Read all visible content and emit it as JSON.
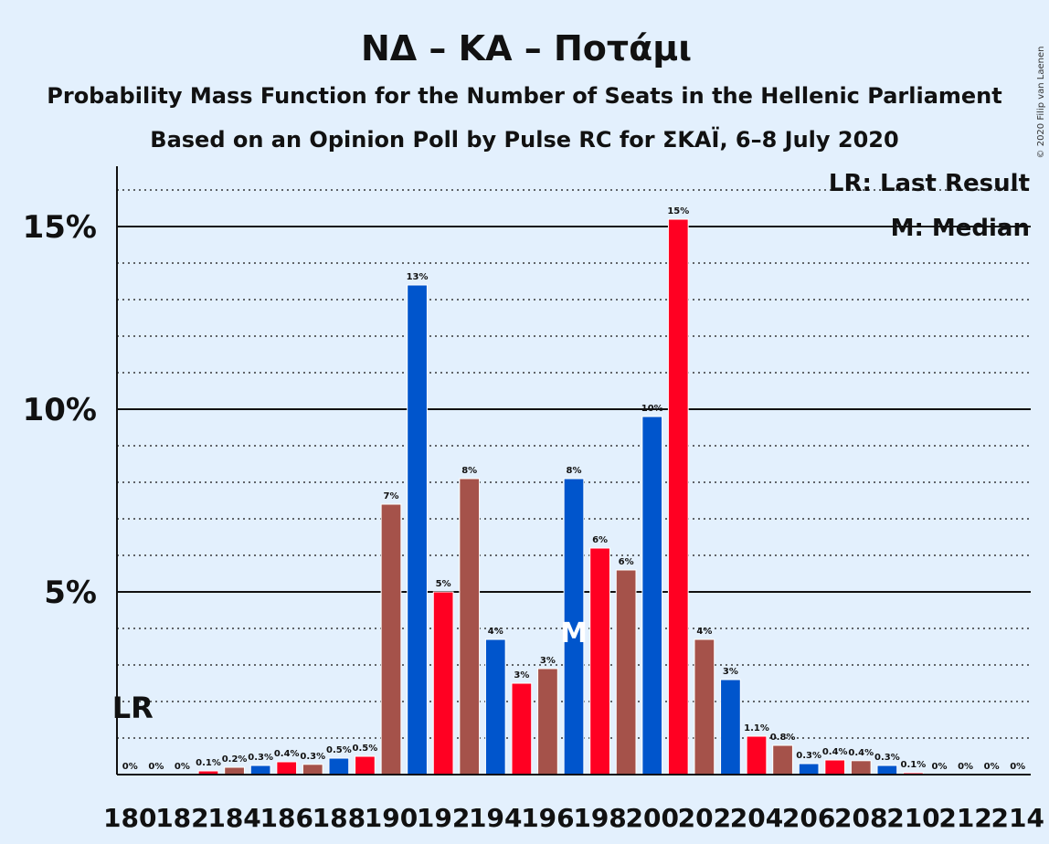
{
  "chart_data": {
    "type": "bar",
    "title": "ΝΔ – ΚΑ – Ποτάμι",
    "subtitle1": "Probability Mass Function for the Number of Seats in the Hellenic Parliament",
    "subtitle2": "Based on an Opinion Poll by Pulse RC for ΣΚΑΪ, 6–8 July 2020",
    "copyright": "© 2020 Filip van Laenen",
    "legend": {
      "lr": "LR: Last Result",
      "median": "M: Median"
    },
    "last_result_label": "LR",
    "median_label": "M",
    "last_result_seat": 180,
    "median_seat": 197,
    "ylim": [
      0,
      16.5
    ],
    "yticks": [
      {
        "value": 5,
        "label": "5%"
      },
      {
        "value": 10,
        "label": "10%"
      },
      {
        "value": 15,
        "label": "15%"
      }
    ],
    "xtick_labels": [
      "180",
      "182",
      "184",
      "186",
      "188",
      "190",
      "192",
      "194",
      "196",
      "198",
      "200",
      "202",
      "204",
      "206",
      "208",
      "210",
      "212",
      "214"
    ],
    "colors": [
      "#ff0022",
      "#a5524a",
      "#0055cc"
    ],
    "bars": [
      {
        "seat": 180,
        "value": 0,
        "label": "0%"
      },
      {
        "seat": 181,
        "value": 0,
        "label": "0%"
      },
      {
        "seat": 182,
        "value": 0,
        "label": "0%"
      },
      {
        "seat": 183,
        "value": 0.1,
        "label": "0.1%"
      },
      {
        "seat": 184,
        "value": 0.2,
        "label": "0.2%"
      },
      {
        "seat": 185,
        "value": 0.25,
        "label": "0.3%"
      },
      {
        "seat": 186,
        "value": 0.35,
        "label": "0.4%"
      },
      {
        "seat": 187,
        "value": 0.28,
        "label": "0.3%"
      },
      {
        "seat": 188,
        "value": 0.45,
        "label": "0.5%"
      },
      {
        "seat": 189,
        "value": 0.5,
        "label": "0.5%"
      },
      {
        "seat": 190,
        "value": 7.4,
        "label": "7%"
      },
      {
        "seat": 191,
        "value": 13.4,
        "label": "13%"
      },
      {
        "seat": 192,
        "value": 5.0,
        "label": "5%"
      },
      {
        "seat": 193,
        "value": 8.1,
        "label": "8%"
      },
      {
        "seat": 194,
        "value": 3.7,
        "label": "4%"
      },
      {
        "seat": 195,
        "value": 2.5,
        "label": "3%"
      },
      {
        "seat": 196,
        "value": 2.9,
        "label": "3%"
      },
      {
        "seat": 197,
        "value": 8.1,
        "label": "8%"
      },
      {
        "seat": 198,
        "value": 6.2,
        "label": "6%"
      },
      {
        "seat": 199,
        "value": 5.6,
        "label": "6%"
      },
      {
        "seat": 200,
        "value": 9.8,
        "label": "10%"
      },
      {
        "seat": 201,
        "value": 15.2,
        "label": "15%"
      },
      {
        "seat": 202,
        "value": 3.7,
        "label": "4%"
      },
      {
        "seat": 203,
        "value": 2.6,
        "label": "3%"
      },
      {
        "seat": 204,
        "value": 1.05,
        "label": "1.1%"
      },
      {
        "seat": 205,
        "value": 0.8,
        "label": "0.8%"
      },
      {
        "seat": 206,
        "value": 0.3,
        "label": "0.3%"
      },
      {
        "seat": 207,
        "value": 0.4,
        "label": "0.4%"
      },
      {
        "seat": 208,
        "value": 0.38,
        "label": "0.4%"
      },
      {
        "seat": 209,
        "value": 0.25,
        "label": "0.3%"
      },
      {
        "seat": 210,
        "value": 0.05,
        "label": "0.1%"
      },
      {
        "seat": 211,
        "value": 0,
        "label": "0%"
      },
      {
        "seat": 212,
        "value": 0,
        "label": "0%"
      },
      {
        "seat": 213,
        "value": 0,
        "label": "0%"
      },
      {
        "seat": 214,
        "value": 0,
        "label": "0%"
      }
    ]
  }
}
